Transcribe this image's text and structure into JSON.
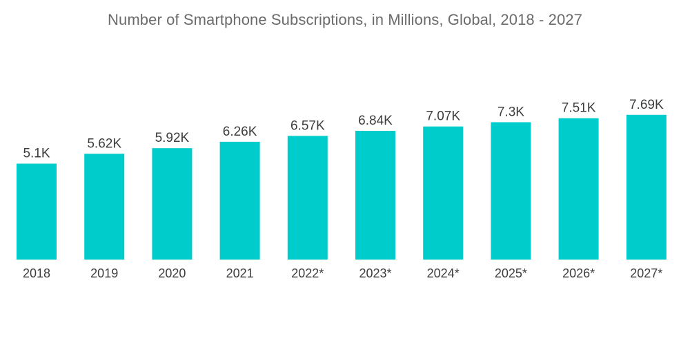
{
  "chart_data": {
    "type": "bar",
    "title": "Number of Smartphone Subscriptions, in Millions, Global, 2018 - 2027",
    "xlabel": "",
    "ylabel": "",
    "categories": [
      "2018",
      "2019",
      "2020",
      "2021",
      "2022*",
      "2023*",
      "2024*",
      "2025*",
      "2026*",
      "2027*"
    ],
    "values": [
      5.1,
      5.62,
      5.92,
      6.26,
      6.57,
      6.84,
      7.07,
      7.3,
      7.51,
      7.69
    ],
    "value_labels": [
      "5.1K",
      "5.62K",
      "5.92K",
      "6.26K",
      "6.57K",
      "6.84K",
      "7.07K",
      "7.3K",
      "7.51K",
      "7.69K"
    ],
    "ylim": [
      0,
      8.28
    ],
    "grid": false,
    "legend": "none",
    "bar_color": "#00cccc"
  }
}
